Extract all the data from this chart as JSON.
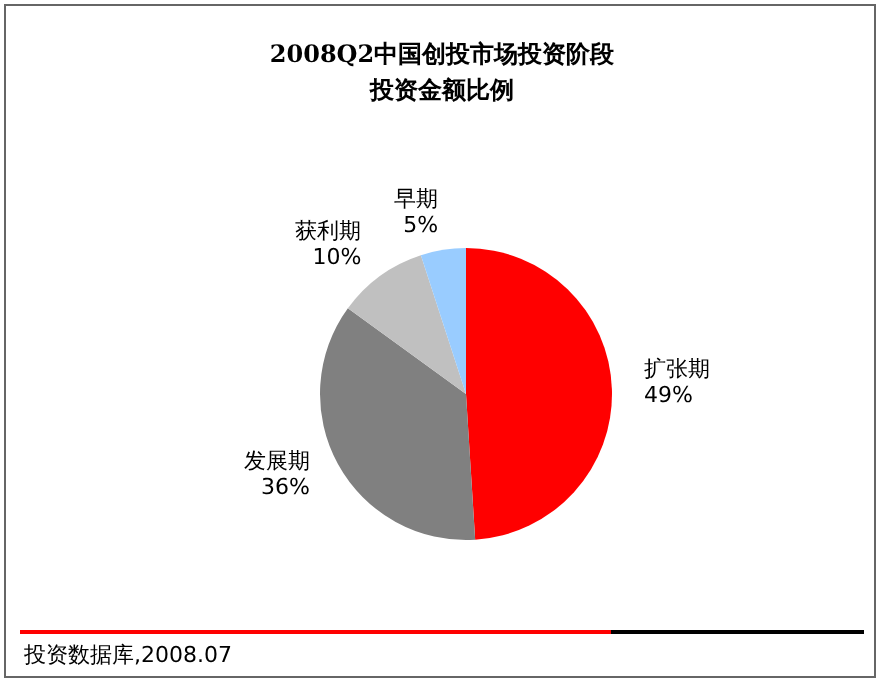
{
  "chart_data": {
    "type": "pie",
    "title": "2008Q2中国创投市场投资阶段",
    "subtitle": "投资金额比例",
    "categories": [
      "扩张期",
      "发展期",
      "获利期",
      "早期"
    ],
    "values": [
      49,
      36,
      10,
      5
    ],
    "value_labels": [
      "49%",
      "36%",
      "10%",
      "5%"
    ],
    "colors": [
      "#ff0000",
      "#808080",
      "#c0c0c0",
      "#99ccff"
    ],
    "annotations": [
      "投资数据库,2008.07"
    ]
  }
}
